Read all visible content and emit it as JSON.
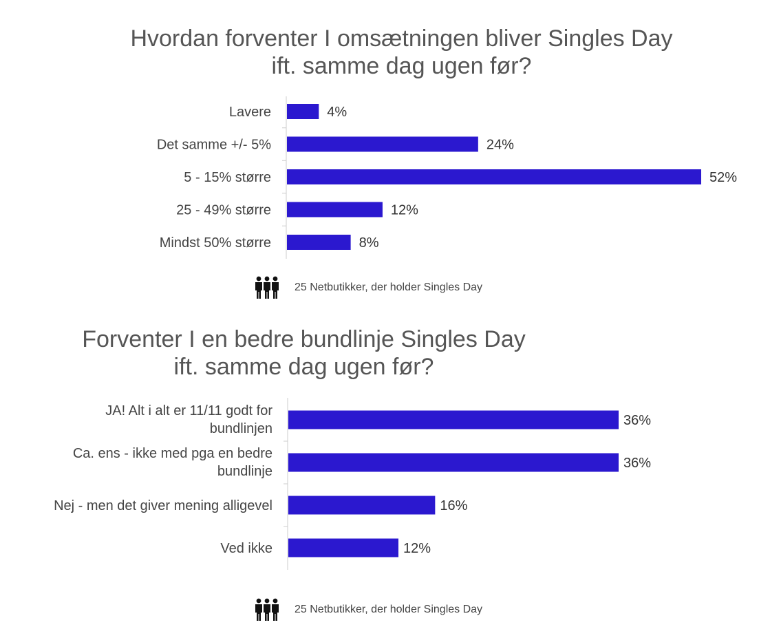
{
  "chart_data": [
    {
      "type": "bar",
      "orientation": "horizontal",
      "title_lines": [
        "Hvordan forventer I omsætningen bliver Singles Day",
        "ift. samme dag ugen før?"
      ],
      "categories": [
        "Lavere",
        "Det samme +/- 5%",
        "5 - 15% større",
        "25 - 49% større",
        "Mindst 50% større"
      ],
      "values": [
        4,
        24,
        52,
        12,
        8
      ],
      "value_labels": [
        "4%",
        "24%",
        "52%",
        "12%",
        "8%"
      ],
      "bar_color": "#2b18cf",
      "xlim": [
        0,
        52
      ],
      "grid": false,
      "footnote": "25 Netbutikker, der holder Singles Day"
    },
    {
      "type": "bar",
      "orientation": "horizontal",
      "title_lines": [
        "Forventer I en bedre bundlinje Singles Day",
        "ift. samme dag ugen før?"
      ],
      "categories": [
        [
          "JA! Alt i alt er 11/11 godt for",
          "bundlinjen"
        ],
        [
          "Ca. ens - ikke med pga en bedre",
          "bundlinje"
        ],
        [
          "Nej - men det giver mening alligevel"
        ],
        [
          "Ved ikke"
        ]
      ],
      "values": [
        36,
        36,
        16,
        12
      ],
      "value_labels": [
        "36%",
        "36%",
        "16%",
        "12%"
      ],
      "bar_color": "#2b18cf",
      "xlim": [
        0,
        36
      ],
      "grid": false,
      "footnote": "25 Netbutikker, der holder Singles Day"
    }
  ]
}
